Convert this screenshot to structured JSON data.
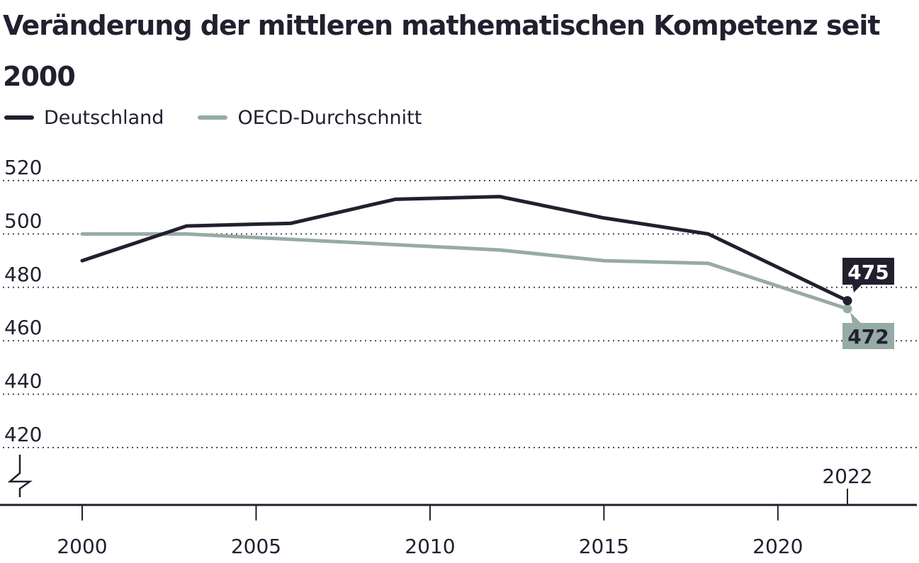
{
  "title": "Veränderung der mittleren mathematischen Kompetenz seit 2000",
  "legend": [
    {
      "label": "Deutschland",
      "color": "#22202f"
    },
    {
      "label": "OECD-Durchschnitt",
      "color": "#96aba6"
    }
  ],
  "chart_data": {
    "type": "line",
    "title": "Veränderung der mittleren mathematischen Kompetenz seit 2000",
    "xlabel": "",
    "ylabel": "",
    "ylim": [
      420,
      520
    ],
    "xlim": [
      2000,
      2022
    ],
    "yticks": [
      520,
      500,
      480,
      460,
      440,
      420
    ],
    "xticks": [
      2000,
      2005,
      2010,
      2015,
      2020
    ],
    "extra_xtick_label": "2022",
    "grid": true,
    "legend_position": "top-left",
    "series": [
      {
        "name": "Deutschland",
        "color": "#22202f",
        "x": [
          2000,
          2003,
          2006,
          2009,
          2012,
          2015,
          2018,
          2022
        ],
        "y": [
          490,
          503,
          504,
          513,
          514,
          506,
          500,
          475
        ],
        "end_label": "475"
      },
      {
        "name": "OECD-Durchschnitt",
        "color": "#96aba6",
        "x": [
          2000,
          2003,
          2006,
          2009,
          2012,
          2015,
          2018,
          2022
        ],
        "y": [
          500,
          500,
          498,
          496,
          494,
          490,
          489,
          472
        ],
        "end_label": "472"
      }
    ]
  }
}
